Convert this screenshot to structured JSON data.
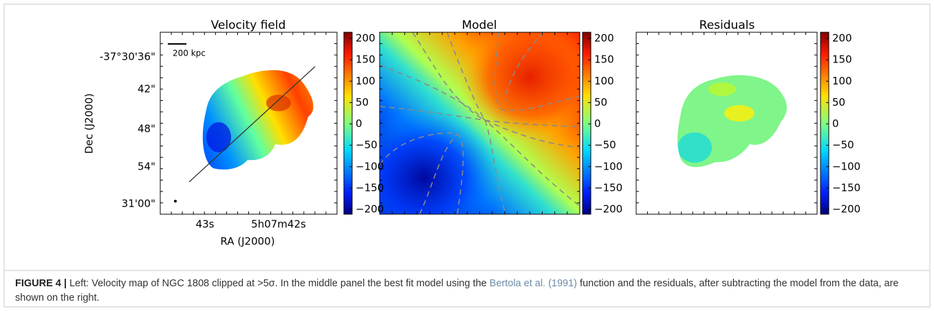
{
  "figure": {
    "panels": [
      {
        "title": "Velocity field"
      },
      {
        "title": "Model"
      },
      {
        "title": "Residuals"
      }
    ],
    "colorbar_ticks": [
      "200",
      "150",
      "100",
      "50",
      "0",
      "−50",
      "−100",
      "−150",
      "−200"
    ],
    "scale_bar": "200 kpc",
    "y_ticks": [
      "-37°30'36\"",
      "42\"",
      "48\"",
      "54\"",
      "31'00\""
    ],
    "x_ticks": [
      "43s",
      "5h07m42s"
    ],
    "x_label": "RA (J2000)",
    "y_label": "Dec (J2000)"
  },
  "caption": {
    "label": "FIGURE 4 |",
    "text_1": " Left: Velocity map of NGC 1808 clipped at >5σ. In the middle panel the best fit model using the ",
    "link": "Bertola et al. (1991)",
    "text_2": " function and the residuals, after subtracting the model from the data, are shown on the right."
  }
}
